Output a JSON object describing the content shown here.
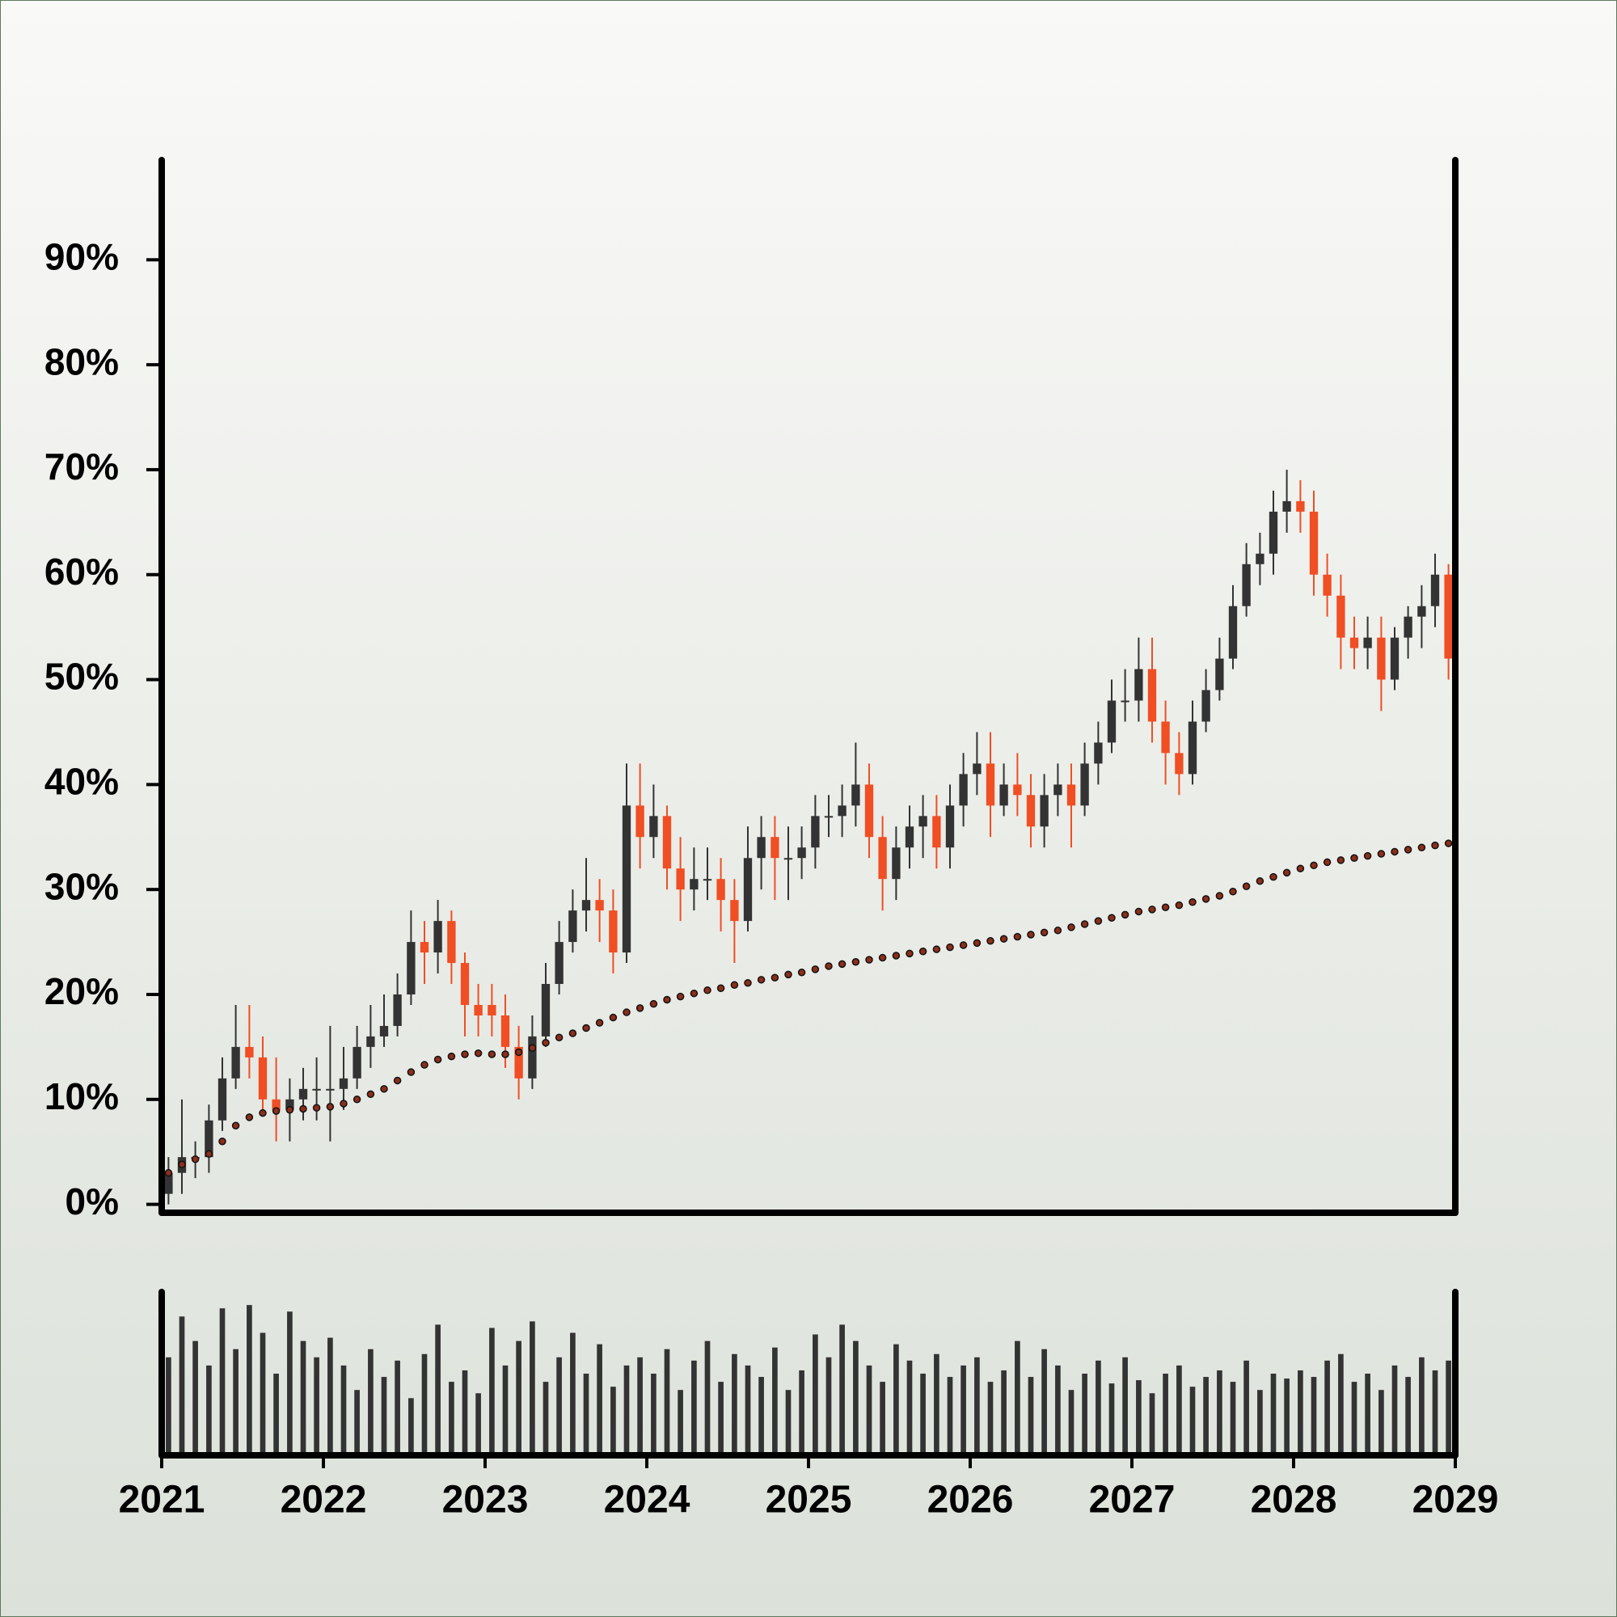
{
  "chart_data": {
    "type": "candlestick",
    "x": [
      2021.042,
      2021.125,
      2021.208,
      2021.292,
      2021.375,
      2021.458,
      2021.542,
      2021.625,
      2021.708,
      2021.792,
      2021.875,
      2021.958,
      2022.042,
      2022.125,
      2022.208,
      2022.292,
      2022.375,
      2022.458,
      2022.542,
      2022.625,
      2022.708,
      2022.792,
      2022.875,
      2022.958,
      2023.042,
      2023.125,
      2023.208,
      2023.292,
      2023.375,
      2023.458,
      2023.542,
      2023.625,
      2023.708,
      2023.792,
      2023.875,
      2023.958,
      2024.042,
      2024.125,
      2024.208,
      2024.292,
      2024.375,
      2024.458,
      2024.542,
      2024.625,
      2024.708,
      2024.792,
      2024.875,
      2024.958,
      2025.042,
      2025.125,
      2025.208,
      2025.292,
      2025.375,
      2025.458,
      2025.542,
      2025.625,
      2025.708,
      2025.792,
      2025.875,
      2025.958,
      2026.042,
      2026.125,
      2026.208,
      2026.292,
      2026.375,
      2026.458,
      2026.542,
      2026.625,
      2026.708,
      2026.792,
      2026.875,
      2026.958,
      2027.042,
      2027.125,
      2027.208,
      2027.292,
      2027.375,
      2027.458,
      2027.542,
      2027.625,
      2027.708,
      2027.792,
      2027.875,
      2027.958,
      2028.042,
      2028.125,
      2028.208,
      2028.292,
      2028.375,
      2028.458,
      2028.542,
      2028.625,
      2028.708,
      2028.792,
      2028.875,
      2028.958
    ],
    "open": [
      1,
      3,
      4.5,
      4.5,
      8,
      12,
      15,
      14,
      10,
      9,
      10,
      11,
      11,
      11,
      12,
      15,
      16,
      17,
      20,
      25,
      24,
      27,
      23,
      19,
      19,
      18,
      15,
      12,
      16,
      21,
      25,
      28,
      29,
      28,
      24,
      38,
      35,
      37,
      32,
      30,
      31,
      31,
      29,
      27,
      33,
      35,
      33,
      33,
      34,
      37,
      37,
      38,
      40,
      35,
      31,
      34,
      36,
      37,
      34,
      38,
      41,
      42,
      38,
      40,
      39,
      36,
      39,
      40,
      38,
      42,
      44,
      48,
      48,
      51,
      46,
      43,
      41,
      46,
      49,
      52,
      57,
      61,
      62,
      66,
      67,
      66,
      60,
      58,
      54,
      53,
      54,
      50,
      54,
      56,
      57,
      60
    ],
    "high": [
      4.5,
      10,
      6,
      9.5,
      14,
      19,
      19,
      16,
      14,
      12,
      13,
      14,
      17,
      15,
      17,
      19,
      20,
      22,
      28,
      27,
      29,
      28,
      24,
      21,
      21,
      20,
      17,
      18,
      23,
      27,
      30,
      33,
      31,
      30,
      42,
      42,
      40,
      38,
      35,
      34,
      34,
      33,
      31,
      36,
      37,
      37,
      36,
      36,
      39,
      39,
      40,
      44,
      42,
      37,
      36,
      38,
      39,
      39,
      40,
      43,
      45,
      45,
      42,
      43,
      41,
      41,
      42,
      42,
      44,
      46,
      50,
      51,
      54,
      54,
      48,
      45,
      48,
      51,
      54,
      59,
      63,
      64,
      68,
      70,
      69,
      68,
      62,
      60,
      56,
      56,
      56,
      55,
      57,
      59,
      62,
      61
    ],
    "low": [
      0,
      1,
      2.5,
      3,
      7,
      11,
      12,
      9,
      6,
      6,
      8,
      8,
      6,
      9,
      11,
      13,
      15,
      16,
      19,
      21,
      22,
      21,
      16,
      16,
      16,
      13,
      10,
      11,
      15,
      20,
      24,
      26,
      25,
      22,
      23,
      32,
      33,
      30,
      27,
      28,
      29,
      26,
      23,
      26,
      30,
      29,
      29,
      31,
      32,
      35,
      35,
      36,
      33,
      28,
      29,
      32,
      33,
      32,
      32,
      36,
      39,
      35,
      37,
      37,
      34,
      34,
      37,
      34,
      37,
      40,
      43,
      46,
      46,
      44,
      40,
      39,
      40,
      45,
      48,
      51,
      56,
      59,
      60,
      64,
      64,
      58,
      56,
      51,
      51,
      51,
      47,
      49,
      52,
      53,
      55,
      50
    ],
    "close": [
      3,
      4.5,
      4.5,
      8,
      12,
      15,
      14,
      10,
      9,
      10,
      11,
      11,
      11,
      12,
      15,
      16,
      17,
      20,
      25,
      24,
      27,
      23,
      19,
      18,
      18,
      15,
      12,
      16,
      21,
      25,
      28,
      29,
      28,
      24,
      38,
      35,
      37,
      32,
      30,
      31,
      31,
      29,
      27,
      33,
      35,
      33,
      33,
      34,
      37,
      37,
      38,
      40,
      35,
      31,
      34,
      36,
      37,
      34,
      38,
      41,
      42,
      38,
      40,
      39,
      36,
      39,
      40,
      38,
      42,
      44,
      48,
      48,
      51,
      46,
      43,
      41,
      46,
      49,
      52,
      57,
      61,
      62,
      66,
      67,
      66,
      60,
      58,
      54,
      53,
      54,
      50,
      54,
      56,
      57,
      60,
      52
    ],
    "up_color": "#333333",
    "down_color": "#f04e23",
    "moving_average": {
      "color": "#8b2e1a",
      "values": [
        3,
        3.8,
        4.3,
        4.8,
        6,
        7.5,
        8.3,
        8.7,
        8.9,
        9,
        9.1,
        9.2,
        9.3,
        9.6,
        10,
        10.5,
        11,
        11.8,
        12.6,
        13.3,
        13.8,
        14.1,
        14.3,
        14.4,
        14.3,
        14.3,
        14.5,
        14.9,
        15.4,
        15.9,
        16.3,
        16.8,
        17.3,
        17.8,
        18.3,
        18.7,
        19.1,
        19.5,
        19.8,
        20.1,
        20.4,
        20.6,
        20.9,
        21.1,
        21.4,
        21.6,
        21.9,
        22.1,
        22.4,
        22.7,
        22.9,
        23.1,
        23.3,
        23.5,
        23.7,
        23.9,
        24.1,
        24.3,
        24.5,
        24.7,
        24.9,
        25.1,
        25.3,
        25.5,
        25.7,
        25.9,
        26.1,
        26.4,
        26.7,
        27,
        27.3,
        27.6,
        27.9,
        28.1,
        28.3,
        28.5,
        28.8,
        29.1,
        29.4,
        29.8,
        30.3,
        30.8,
        31.2,
        31.6,
        32,
        32.3,
        32.6,
        32.8,
        33,
        33.2,
        33.4,
        33.6,
        33.8,
        34,
        34.2,
        34.4
      ]
    },
    "volume": {
      "color": "#333333",
      "ylim": [
        0,
        100
      ],
      "values": [
        60,
        85,
        70,
        55,
        90,
        65,
        92,
        75,
        50,
        88,
        70,
        60,
        72,
        55,
        40,
        65,
        48,
        58,
        35,
        62,
        80,
        45,
        52,
        38,
        78,
        55,
        70,
        82,
        45,
        60,
        75,
        50,
        68,
        42,
        55,
        60,
        50,
        65,
        40,
        58,
        70,
        45,
        62,
        55,
        48,
        66,
        40,
        52,
        74,
        60,
        80,
        70,
        55,
        45,
        68,
        58,
        50,
        62,
        48,
        55,
        60,
        45,
        52,
        70,
        48,
        65,
        55,
        40,
        50,
        58,
        44,
        60,
        46,
        38,
        50,
        55,
        42,
        48,
        52,
        45,
        58,
        40,
        50,
        47,
        52,
        48,
        58,
        62,
        45,
        50,
        40,
        55,
        48,
        60,
        52,
        58
      ]
    },
    "xlim": [
      2021,
      2029
    ],
    "xticks": [
      2021,
      2022,
      2023,
      2024,
      2025,
      2026,
      2027,
      2028,
      2029
    ],
    "ylim": [
      -0.8,
      99.5
    ],
    "yticks": [
      {
        "value": 0,
        "label": "0%"
      },
      {
        "value": 10,
        "label": "10%"
      },
      {
        "value": 20,
        "label": "20%"
      },
      {
        "value": 30,
        "label": "30%"
      },
      {
        "value": 40,
        "label": "40%"
      },
      {
        "value": 50,
        "label": "50%"
      },
      {
        "value": 60,
        "label": "60%"
      },
      {
        "value": 70,
        "label": "70%"
      },
      {
        "value": 80,
        "label": "80%"
      },
      {
        "value": 90,
        "label": "90%"
      }
    ]
  }
}
